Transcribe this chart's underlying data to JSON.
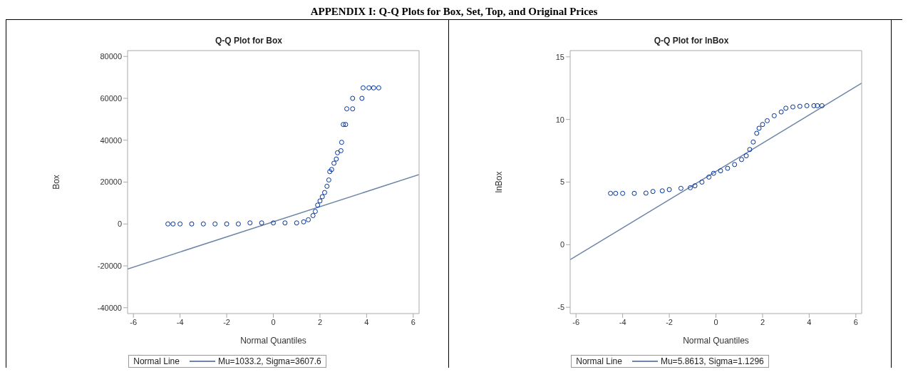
{
  "chart_data": [
    {
      "type": "scatter",
      "title": "Q-Q Plot for Box",
      "xlabel": "Normal Quantiles",
      "ylabel": "Box",
      "legend_title": "Normal Line",
      "annotations": [
        "APPENDIX I: Q-Q Plots for Box, Set, Top, and Original Prices"
      ],
      "xlim": [
        -6.25,
        6.25
      ],
      "xticks": [
        -6,
        -4,
        -2,
        0,
        2,
        4,
        6
      ],
      "ylim": [
        -42800,
        82800
      ],
      "yticks": [
        -40000,
        -20000,
        0,
        20000,
        40000,
        60000,
        80000
      ],
      "grid": false,
      "legend": "bottom",
      "marker": "circle",
      "series": [
        {
          "color": "#003399",
          "x": [
            -4.52,
            -4.3,
            -4,
            -3.5,
            -3,
            -2.5,
            -2,
            -1.5,
            -1,
            -0.5,
            0,
            0.5,
            1,
            1.3,
            1.5,
            1.7,
            1.8,
            1.9,
            2,
            2.1,
            2.2,
            2.3,
            2.38,
            2.42,
            2.5,
            2.6,
            2.7,
            2.75,
            2.9,
            2.93,
            3,
            3.1,
            3.15,
            3.4,
            3.4,
            3.8,
            3.85,
            4.1,
            4.3,
            4.52
          ],
          "values": [
            0,
            0,
            0,
            0,
            0,
            0,
            0,
            0,
            500,
            500,
            500,
            500,
            500,
            1000,
            2000,
            4000,
            6000,
            9000,
            11000,
            13000,
            15000,
            18000,
            21000,
            25000,
            26000,
            29000,
            31000,
            34000,
            35000,
            39000,
            47500,
            47500,
            55000,
            55000,
            60000,
            60000,
            65000,
            65000,
            65000,
            65000
          ]
        },
        {
          "type": "line",
          "name": "Mu=1033.2, Sigma=3607.6",
          "color": "#6f86a8",
          "marker": "none",
          "x": [
            -6.25,
            6.25
          ],
          "values": [
            -21500,
            23600
          ]
        }
      ]
    },
    {
      "type": "scatter",
      "title": "Q-Q Plot for lnBox",
      "xlabel": "Normal Quantiles",
      "ylabel": "lnBox",
      "legend_title": "Normal Line",
      "xlim": [
        -6.25,
        6.25
      ],
      "xticks": [
        -6,
        -4,
        -2,
        0,
        2,
        4,
        6
      ],
      "ylim": [
        -5.5,
        15.5
      ],
      "yticks": [
        -5,
        0,
        5,
        10,
        15
      ],
      "grid": false,
      "legend": "bottom",
      "marker": "circle",
      "series": [
        {
          "color": "#003399",
          "x": [
            -4.52,
            -4.3,
            -4,
            -3.5,
            -3,
            -2.7,
            -2.3,
            -2,
            -1.5,
            -1.1,
            -0.9,
            -0.6,
            -0.3,
            -0.1,
            0.2,
            0.5,
            0.8,
            1.1,
            1.3,
            1.45,
            1.6,
            1.75,
            1.85,
            2,
            2.2,
            2.5,
            2.8,
            3,
            3.3,
            3.6,
            3.9,
            4.2,
            4.35,
            4.55
          ],
          "values": [
            4.1,
            4.1,
            4.1,
            4.1,
            4.12,
            4.25,
            4.3,
            4.4,
            4.5,
            4.55,
            4.7,
            5,
            5.4,
            5.7,
            5.9,
            6.1,
            6.4,
            6.8,
            7.1,
            7.6,
            8.2,
            8.9,
            9.3,
            9.6,
            9.9,
            10.3,
            10.6,
            10.9,
            11,
            11.05,
            11.1,
            11.1,
            11.1,
            11.1
          ]
        },
        {
          "type": "line",
          "name": "Mu=5.8613, Sigma=1.1296",
          "color": "#6f86a8",
          "marker": "none",
          "x": [
            -6.25,
            6.25
          ],
          "values": [
            -1.2,
            12.9
          ]
        }
      ]
    }
  ]
}
